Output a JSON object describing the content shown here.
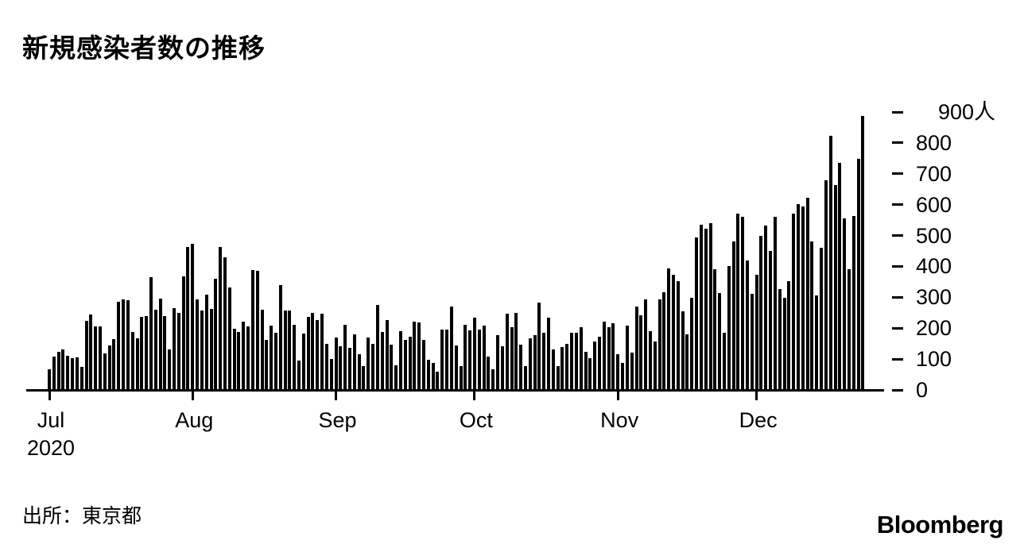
{
  "title": "新規感染者数の推移",
  "source": "出所：東京都",
  "branding": "Bloomberg",
  "chart_data": {
    "type": "bar",
    "title": "新規感染者数の推移",
    "unit": "人",
    "bar_color": "#000000",
    "ylim": [
      0,
      900
    ],
    "y_ticks": [
      0,
      100,
      200,
      300,
      400,
      500,
      600,
      700,
      800,
      900
    ],
    "y_top_label": "900人",
    "year_label": "2020",
    "date_range": "2020-07-01 to 2020-12-24",
    "x_tick_labels": [
      "Jul",
      "Aug",
      "Sep",
      "Oct",
      "Nov",
      "Dec"
    ],
    "months": [
      {
        "label": "Jul",
        "values": [
          67,
          107,
          124,
          131,
          111,
          102,
          106,
          75,
          224,
          243,
          206,
          206,
          119,
          143,
          165,
          286,
          293,
          290,
          188,
          168,
          237,
          238,
          366,
          260,
          295,
          239,
          131,
          266,
          250,
          367,
          463
        ]
      },
      {
        "label": "Aug",
        "values": [
          472,
          292,
          258,
          309,
          263,
          360,
          462,
          429,
          331,
          197,
          188,
          222,
          206,
          389,
          385,
          260,
          161,
          207,
          186,
          339,
          258,
          256,
          212,
          95,
          182,
          236,
          250,
          226,
          247,
          148,
          100
        ]
      },
      {
        "label": "Sep",
        "values": [
          170,
          141,
          211,
          136,
          181,
          116,
          77,
          170,
          149,
          276,
          187,
          226,
          146,
          80,
          191,
          163,
          171,
          220,
          218,
          162,
          98,
          88,
          59,
          195,
          195,
          270,
          144,
          78,
          212,
          194
        ]
      },
      {
        "label": "Oct",
        "values": [
          235,
          196,
          207,
          108,
          66,
          177,
          142,
          248,
          203,
          249,
          146,
          78,
          166,
          177,
          284,
          184,
          235,
          132,
          78,
          139,
          150,
          185,
          186,
          203,
          124,
          102,
          158,
          171,
          221,
          204,
          215
        ]
      },
      {
        "label": "Nov",
        "values": [
          116,
          87,
          209,
          122,
          269,
          242,
          294,
          189,
          157,
          293,
          317,
          393,
          374,
          352,
          255,
          180,
          298,
          493,
          534,
          522,
          539,
          391,
          314,
          186,
          401,
          481,
          570,
          561,
          418,
          311
        ]
      },
      {
        "label": "Dec",
        "values": [
          372,
          500,
          533,
          449,
          561,
          327,
          299,
          352,
          572,
          602,
          595,
          621,
          480,
          305,
          460,
          678,
          822,
          664,
          736,
          556,
          392,
          563,
          748,
          888
        ]
      }
    ]
  }
}
